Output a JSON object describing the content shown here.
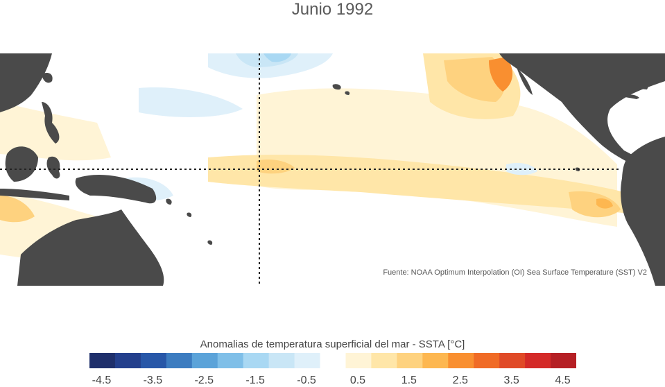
{
  "title": "Junio 1992",
  "source": "Fuente: NOAA Optimum Interpolation (OI) Sea Surface Temperature (SST) V2",
  "colorbar": {
    "title": "Anomalias de temperatura superficial del mar - SSTA  [°C]",
    "tick_labels": [
      "-4.5",
      "-3.5",
      "-2.5",
      "-1.5",
      "-0.5",
      "0.5",
      "1.5",
      "2.5",
      "3.5",
      "4.5"
    ],
    "colors": [
      "#1e2f6b",
      "#233f8c",
      "#2757a8",
      "#3c7cc0",
      "#5ba3d9",
      "#7fbfe8",
      "#a9d8f3",
      "#c9e6f6",
      "#dff0fa",
      "#ffffff",
      "#fff4d6",
      "#ffe6a8",
      "#fed27f",
      "#fdb750",
      "#f98f30",
      "#f06b26",
      "#e04a27",
      "#d42a28",
      "#b51f24"
    ]
  },
  "colors": {
    "land": "#4a4a4a",
    "guides": "#222222"
  }
}
